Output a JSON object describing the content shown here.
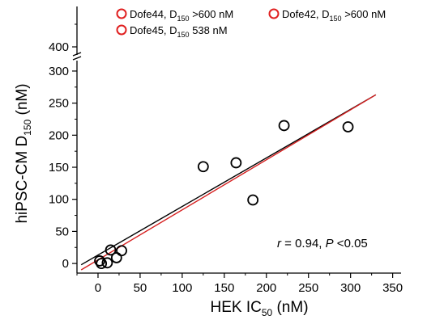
{
  "chart_data": {
    "type": "scatter",
    "xlabel": {
      "main": "HEK IC",
      "sub": "50",
      "unit": " (nM)"
    },
    "ylabel": {
      "main": "hiPSC-CM  D",
      "sub": "150",
      "unit": " (nM)"
    },
    "xlim": [
      -25,
      360
    ],
    "ylim_lower": [
      -15,
      310
    ],
    "ylim_upper_tick": 400,
    "x_ticks": [
      0,
      50,
      100,
      150,
      200,
      250,
      300,
      350
    ],
    "y_ticks": [
      0,
      50,
      100,
      150,
      200,
      250,
      300
    ],
    "y_upper_ticks": [
      400
    ],
    "axis_break": true,
    "series": [
      {
        "values": [
          {
            "x": 2,
            "y": 4
          },
          {
            "x": 4,
            "y": 0
          },
          {
            "x": 11,
            "y": 1
          },
          {
            "x": 15,
            "y": 21
          },
          {
            "x": 22,
            "y": 9
          },
          {
            "x": 28,
            "y": 20
          },
          {
            "x": 125,
            "y": 151
          },
          {
            "x": 164,
            "y": 157
          },
          {
            "x": 184,
            "y": 99
          },
          {
            "x": 221,
            "y": 215
          },
          {
            "x": 297,
            "y": 213
          }
        ],
        "color": "#000000",
        "marker": "open-circle"
      }
    ],
    "fit_lines": [
      {
        "color": "#000000",
        "start": {
          "x": -20,
          "y": -2
        },
        "end": {
          "x": 330,
          "y": 263
        }
      },
      {
        "color": "#d62020",
        "start": {
          "x": -20,
          "y": -10
        },
        "end": {
          "x": 330,
          "y": 263
        }
      }
    ],
    "legend": {
      "placement": "top",
      "entries": [
        {
          "name": "Dofe44, D",
          "sub": "150",
          "suffix": " >600 nM",
          "color": "#e02020"
        },
        {
          "name": "Dofe42, D",
          "sub": "150",
          "suffix": " >600 nM",
          "color": "#e02020"
        },
        {
          "name": "Dofe45, D",
          "sub": "150",
          "suffix": " 538 nM",
          "color": "#e02020"
        }
      ]
    },
    "annotation": {
      "r_symbol": "r",
      "r_text": " = 0.94, ",
      "p_symbol": "P",
      "p_text": " <0.05"
    },
    "grid": false
  }
}
